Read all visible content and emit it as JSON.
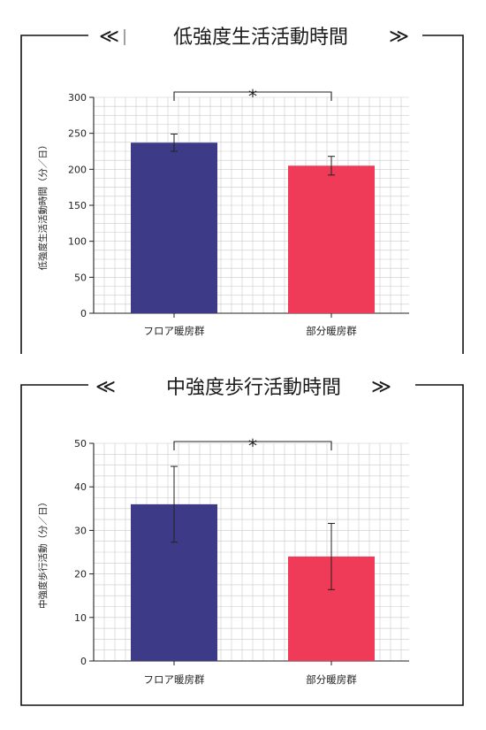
{
  "chart_data": [
    {
      "type": "bar",
      "title": "低強度生活活動時間",
      "ylabel": "低強度生活活動時間（分／日）",
      "categories": [
        "フロア暖房群",
        "部分暖房群"
      ],
      "values": [
        237,
        205
      ],
      "error": [
        12,
        13
      ],
      "ylim": [
        0,
        300
      ],
      "yticks": [
        0,
        50,
        100,
        150,
        200,
        250,
        300
      ],
      "colors": [
        "#3d3a88",
        "#ef3b57"
      ],
      "significance": "*",
      "grid": true
    },
    {
      "type": "bar",
      "title": "中強度歩行活動時間",
      "ylabel": "中強度歩行活動（分／日）",
      "categories": [
        "フロア暖房群",
        "部分暖房群"
      ],
      "values": [
        36,
        24
      ],
      "error": [
        8.7,
        7.6
      ],
      "ylim": [
        0,
        50
      ],
      "yticks": [
        0,
        10,
        20,
        30,
        40,
        50
      ],
      "colors": [
        "#3d3a88",
        "#ef3b57"
      ],
      "significance": "*",
      "grid": true
    }
  ],
  "decor": {
    "left_mark": "≪",
    "right_mark": "≫"
  }
}
